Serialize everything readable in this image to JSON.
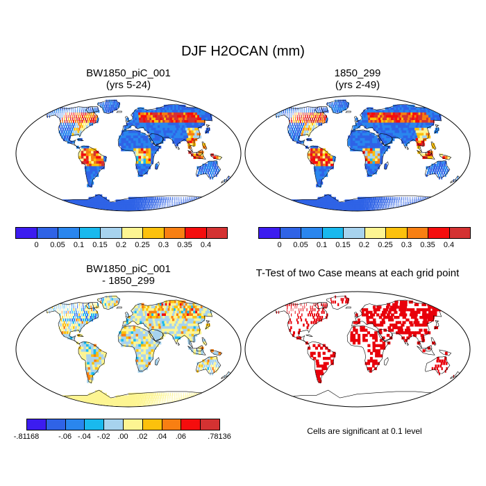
{
  "main_title": "DJF H2OCAN (mm)",
  "panels": [
    {
      "id": "p1",
      "title_line1": "BW1850_piC_001",
      "title_line2": "(yrs 5-24)"
    },
    {
      "id": "p2",
      "title_line1": "1850_299",
      "title_line2": "(yrs 2-49)"
    },
    {
      "id": "p3",
      "title_line1": "BW1850_piC_001",
      "title_line2": "- 1850_299"
    },
    {
      "id": "p4",
      "title_line1": "T-Test of two Case means at each grid point",
      "title_line2": ""
    }
  ],
  "colorbar_main": {
    "colors": [
      "#3c1cf0",
      "#2f63e6",
      "#2a86ee",
      "#19b9ee",
      "#a7d3ee",
      "#fdf592",
      "#fcc10c",
      "#f87f12",
      "#f50d0d",
      "#d43232"
    ],
    "labels": [
      "0",
      "0.05",
      "0.1",
      "0.15",
      "0.2",
      "0.25",
      "0.3",
      "0.35",
      "0.4"
    ]
  },
  "colorbar_diff": {
    "colors": [
      "#3c1cf0",
      "#2f63e6",
      "#2a86ee",
      "#19b9ee",
      "#a7d3ee",
      "#fdf592",
      "#fcc10c",
      "#f87f12",
      "#f50d0d",
      "#d43232"
    ],
    "labels": [
      "-.81168",
      "-.06",
      "-.04",
      "-.02",
      ".00",
      ".02",
      ".04",
      ".06",
      ".78136"
    ],
    "label_slots": [
      0,
      2,
      3,
      4,
      5,
      6,
      7,
      8,
      10
    ]
  },
  "significance_note": "Cells are significant at 0.1 level",
  "map_colors": {
    "ocean": "#ffffff",
    "land_low": "#2f63e6",
    "high": "#f50d0d",
    "mid": "#fcc10c",
    "orange": "#f87f12",
    "diff_base": "#a7d3ee",
    "diff_pos": "#fdf592",
    "signif": "#e8000b"
  }
}
